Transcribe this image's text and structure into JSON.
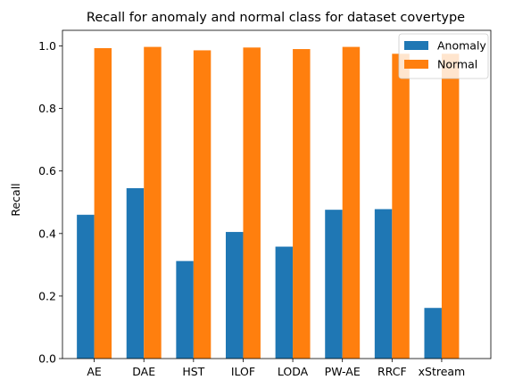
{
  "chart_data": {
    "type": "bar",
    "title": "Recall for anomaly and normal class for dataset covertype",
    "xlabel": "",
    "ylabel": "Recall",
    "ylim": [
      0,
      1.05
    ],
    "yticks": [
      "0.0",
      "0.2",
      "0.4",
      "0.6",
      "0.8",
      "1.0"
    ],
    "categories": [
      "AE",
      "DAE",
      "HST",
      "ILOF",
      "LODA",
      "PW-AE",
      "RRCF",
      "xStream"
    ],
    "series": [
      {
        "name": "Anomaly",
        "color": "#1f77b4",
        "values": [
          0.46,
          0.545,
          0.312,
          0.405,
          0.358,
          0.476,
          0.478,
          0.162
        ]
      },
      {
        "name": "Normal",
        "color": "#ff7f0e",
        "values": [
          0.993,
          0.997,
          0.986,
          0.995,
          0.99,
          0.997,
          0.975,
          0.975
        ]
      }
    ],
    "grid": false,
    "legend_position": "top-right"
  }
}
